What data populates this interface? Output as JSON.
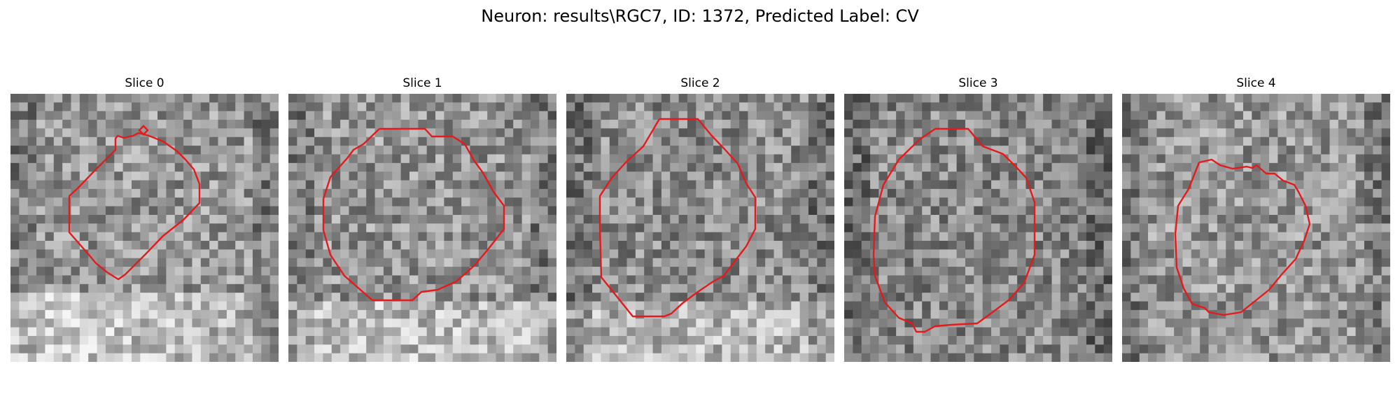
{
  "figure": {
    "title": "Neuron: results\\RGC7, ID: 1372, Predicted Label: CV"
  },
  "slices": [
    {
      "title": "Slice 0",
      "seed": 11,
      "base": 150,
      "bright": "bottom-left",
      "contour": "red-contour-0"
    },
    {
      "title": "Slice 1",
      "seed": 23,
      "base": 148,
      "bright": "bottom",
      "contour": "red-contour-1"
    },
    {
      "title": "Slice 2",
      "seed": 37,
      "base": 140,
      "bright": "bottom",
      "contour": "red-contour-2"
    },
    {
      "title": "Slice 3",
      "seed": 53,
      "base": 135,
      "bright": "none",
      "contour": "red-contour-3"
    },
    {
      "title": "Slice 4",
      "seed": 71,
      "base": 150,
      "bright": "none",
      "contour": "red-contour-4"
    }
  ],
  "style": {
    "contour_color": "#e41a1c",
    "colormap": "grayscale"
  }
}
